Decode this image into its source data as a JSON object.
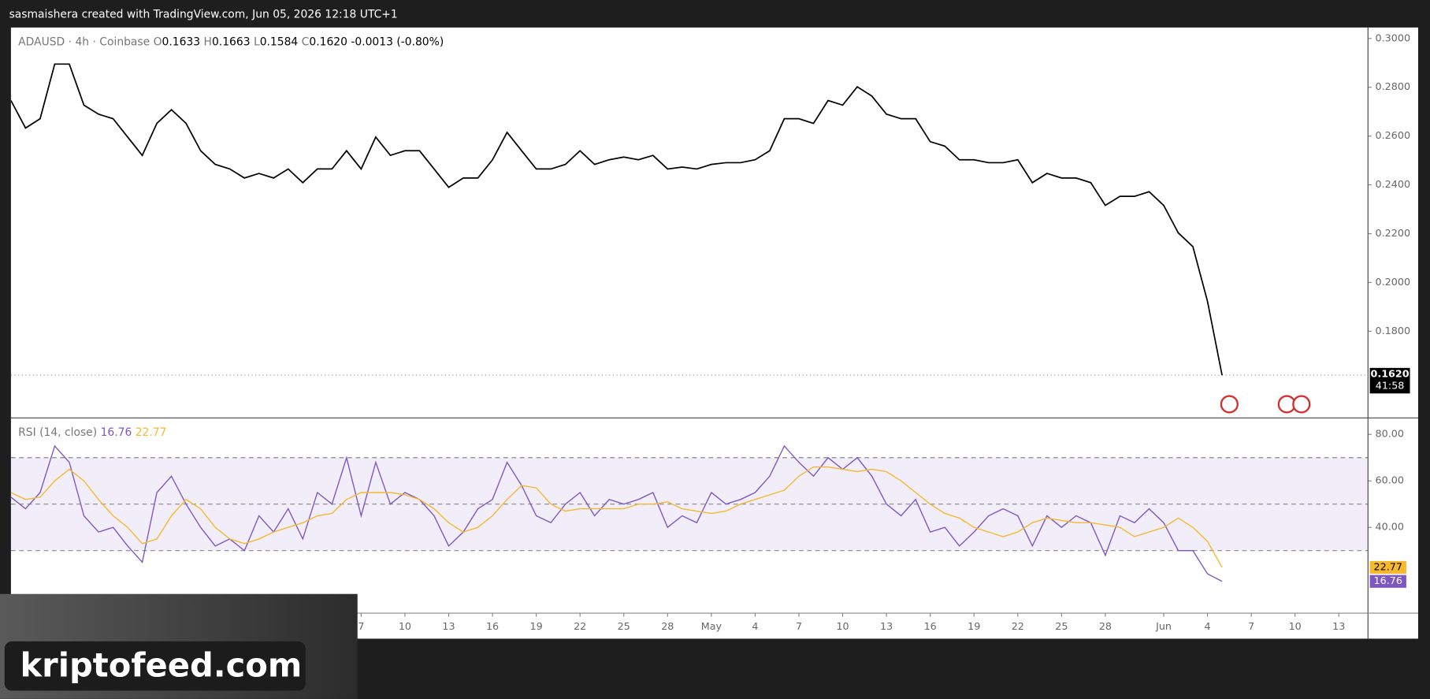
{
  "header": {
    "text": "sasmaishera created with TradingView.com, Jun 05, 2026 12:18 UTC+1"
  },
  "watermark": "kriptofeed.com",
  "chart_data": [
    {
      "type": "line",
      "title": "ADAUSD · 4h · Coinbase",
      "ohlc": [
        {
          "name": "O",
          "value": "0.1633"
        },
        {
          "name": "H",
          "value": "0.1663"
        },
        {
          "name": "L",
          "value": "0.1584"
        },
        {
          "name": "C",
          "value": "0.1620"
        }
      ],
      "change": "-0.0013 (-0.80%)",
      "last_price": {
        "value": 0.162,
        "label": "0.1620"
      },
      "countdown": "41:58",
      "x": [
        "2026-03-14",
        "2026-03-15",
        "2026-03-16",
        "2026-03-17",
        "2026-03-18",
        "2026-03-19",
        "2026-03-20",
        "2026-03-21",
        "2026-03-22",
        "2026-03-23",
        "2026-03-24",
        "2026-03-25",
        "2026-03-26",
        "2026-03-27",
        "2026-03-28",
        "2026-03-29",
        "2026-03-30",
        "2026-03-31",
        "2026-04-01",
        "2026-04-02",
        "2026-04-03",
        "2026-04-04",
        "2026-04-05",
        "2026-04-06",
        "2026-04-07",
        "2026-04-08",
        "2026-04-09",
        "2026-04-10",
        "2026-04-11",
        "2026-04-12",
        "2026-04-13",
        "2026-04-14",
        "2026-04-15",
        "2026-04-16",
        "2026-04-17",
        "2026-04-18",
        "2026-04-19",
        "2026-04-20",
        "2026-04-21",
        "2026-04-22",
        "2026-04-23",
        "2026-04-24",
        "2026-04-25",
        "2026-04-26",
        "2026-04-27",
        "2026-04-28",
        "2026-04-29",
        "2026-04-30",
        "2026-05-01",
        "2026-05-02",
        "2026-05-03",
        "2026-05-04",
        "2026-05-05",
        "2026-05-06",
        "2026-05-07",
        "2026-05-08",
        "2026-05-09",
        "2026-05-10",
        "2026-05-11",
        "2026-05-12",
        "2026-05-13",
        "2026-05-14",
        "2026-05-15",
        "2026-05-16",
        "2026-05-17",
        "2026-05-18",
        "2026-05-19",
        "2026-05-20",
        "2026-05-21",
        "2026-05-22",
        "2026-05-23",
        "2026-05-24",
        "2026-05-25",
        "2026-05-26",
        "2026-05-27",
        "2026-05-28",
        "2026-05-29",
        "2026-05-30",
        "2026-05-31",
        "2026-06-01",
        "2026-06-02",
        "2026-06-03",
        "2026-06-04",
        "2026-06-05"
      ],
      "color": "#000000",
      "values": [
        0.2746,
        0.2633,
        0.2671,
        0.2895,
        0.2895,
        0.2727,
        0.269,
        0.2671,
        0.2596,
        0.2521,
        0.2652,
        0.2708,
        0.2652,
        0.254,
        0.2484,
        0.2465,
        0.2428,
        0.2447,
        0.2428,
        0.2465,
        0.2409,
        0.2465,
        0.2465,
        0.254,
        0.2465,
        0.2596,
        0.2521,
        0.254,
        0.254,
        0.2465,
        0.239,
        0.2428,
        0.2428,
        0.2503,
        0.2615,
        0.254,
        0.2465,
        0.2465,
        0.2484,
        0.254,
        0.2484,
        0.2503,
        0.2514,
        0.2503,
        0.2521,
        0.2465,
        0.2473,
        0.2465,
        0.2484,
        0.2491,
        0.2491,
        0.2503,
        0.254,
        0.2671,
        0.2671,
        0.2652,
        0.2746,
        0.2727,
        0.2802,
        0.2764,
        0.269,
        0.2671,
        0.2671,
        0.2577,
        0.2559,
        0.2503,
        0.2503,
        0.2491,
        0.2491,
        0.2503,
        0.2409,
        0.2447,
        0.2428,
        0.2428,
        0.2409,
        0.2316,
        0.2353,
        0.2353,
        0.2372,
        0.2316,
        0.2203,
        0.2147,
        0.1923,
        0.162
      ],
      "xlim": [
        "2026-03-14",
        "2026-06-15"
      ],
      "ylim": [
        0.1445,
        0.3045
      ],
      "yticks": [
        {
          "value": 0.3,
          "label": "0.3000"
        },
        {
          "value": 0.28,
          "label": "0.2800"
        },
        {
          "value": 0.26,
          "label": "0.2600"
        },
        {
          "value": 0.24,
          "label": "0.2400"
        },
        {
          "value": 0.22,
          "label": "0.2200"
        },
        {
          "value": 0.2,
          "label": "0.2000"
        },
        {
          "value": 0.18,
          "label": "0.1800"
        }
      ]
    },
    {
      "type": "line",
      "title": "RSI (14, close)",
      "x": [
        "2026-03-14",
        "2026-03-15",
        "2026-03-16",
        "2026-03-17",
        "2026-03-18",
        "2026-03-19",
        "2026-03-20",
        "2026-03-21",
        "2026-03-22",
        "2026-03-23",
        "2026-03-24",
        "2026-03-25",
        "2026-03-26",
        "2026-03-27",
        "2026-03-28",
        "2026-03-29",
        "2026-03-30",
        "2026-03-31",
        "2026-04-01",
        "2026-04-02",
        "2026-04-03",
        "2026-04-04",
        "2026-04-05",
        "2026-04-06",
        "2026-04-07",
        "2026-04-08",
        "2026-04-09",
        "2026-04-10",
        "2026-04-11",
        "2026-04-12",
        "2026-04-13",
        "2026-04-14",
        "2026-04-15",
        "2026-04-16",
        "2026-04-17",
        "2026-04-18",
        "2026-04-19",
        "2026-04-20",
        "2026-04-21",
        "2026-04-22",
        "2026-04-23",
        "2026-04-24",
        "2026-04-25",
        "2026-04-26",
        "2026-04-27",
        "2026-04-28",
        "2026-04-29",
        "2026-04-30",
        "2026-05-01",
        "2026-05-02",
        "2026-05-03",
        "2026-05-04",
        "2026-05-05",
        "2026-05-06",
        "2026-05-07",
        "2026-05-08",
        "2026-05-09",
        "2026-05-10",
        "2026-05-11",
        "2026-05-12",
        "2026-05-13",
        "2026-05-14",
        "2026-05-15",
        "2026-05-16",
        "2026-05-17",
        "2026-05-18",
        "2026-05-19",
        "2026-05-20",
        "2026-05-21",
        "2026-05-22",
        "2026-05-23",
        "2026-05-24",
        "2026-05-25",
        "2026-05-26",
        "2026-05-27",
        "2026-05-28",
        "2026-05-29",
        "2026-05-30",
        "2026-05-31",
        "2026-06-01",
        "2026-06-02",
        "2026-06-03",
        "2026-06-04",
        "2026-06-05"
      ],
      "series": [
        {
          "color": "#7e57c2",
          "values": [
            53,
            48,
            55,
            75,
            68,
            45,
            38,
            40,
            32,
            25,
            55,
            62,
            50,
            40,
            32,
            35,
            30,
            45,
            38,
            48,
            35,
            55,
            50,
            70,
            45,
            68,
            50,
            55,
            52,
            45,
            32,
            38,
            48,
            52,
            68,
            58,
            45,
            42,
            50,
            55,
            45,
            52,
            50,
            52,
            55,
            40,
            45,
            42,
            55,
            50,
            52,
            55,
            62,
            75,
            68,
            62,
            70,
            65,
            70,
            62,
            50,
            45,
            52,
            38,
            40,
            32,
            38,
            45,
            48,
            45,
            32,
            45,
            40,
            45,
            42,
            28,
            45,
            42,
            48,
            42,
            30,
            30,
            20,
            16.76
          ]
        },
        {
          "color": "#f5b82e",
          "values": [
            55,
            52,
            53,
            60,
            65,
            60,
            52,
            45,
            40,
            33,
            35,
            45,
            52,
            48,
            40,
            35,
            33,
            35,
            38,
            40,
            42,
            45,
            46,
            52,
            55,
            55,
            55,
            54,
            52,
            48,
            42,
            38,
            40,
            45,
            52,
            58,
            57,
            50,
            47,
            48,
            48,
            48,
            48,
            50,
            50,
            51,
            48,
            47,
            46,
            47,
            50,
            52,
            54,
            56,
            62,
            66,
            66,
            65,
            64,
            65,
            64,
            60,
            55,
            50,
            46,
            44,
            40,
            38,
            36,
            38,
            42,
            44,
            43,
            42,
            42,
            41,
            40,
            36,
            38,
            40,
            44,
            40,
            34,
            22.77
          ]
        }
      ],
      "band": [
        30,
        70
      ],
      "hlines": [
        70,
        50,
        30
      ],
      "xlim": [
        "2026-03-14",
        "2026-06-15"
      ],
      "ylim": [
        3.1,
        87.1
      ],
      "yticks": [
        {
          "value": 80,
          "label": "80.00"
        },
        {
          "value": 60,
          "label": "60.00"
        },
        {
          "value": 40,
          "label": "40.00"
        }
      ],
      "xticks": [
        {
          "value": "2026-04-07",
          "label": "7"
        },
        {
          "value": "2026-04-10",
          "label": "10"
        },
        {
          "value": "2026-04-13",
          "label": "13"
        },
        {
          "value": "2026-04-16",
          "label": "16"
        },
        {
          "value": "2026-04-19",
          "label": "19"
        },
        {
          "value": "2026-04-22",
          "label": "22"
        },
        {
          "value": "2026-04-25",
          "label": "25"
        },
        {
          "value": "2026-04-28",
          "label": "28"
        },
        {
          "value": "2026-05-01",
          "label": "May"
        },
        {
          "value": "2026-05-04",
          "label": "4"
        },
        {
          "value": "2026-05-07",
          "label": "7"
        },
        {
          "value": "2026-05-10",
          "label": "10"
        },
        {
          "value": "2026-05-13",
          "label": "13"
        },
        {
          "value": "2026-05-16",
          "label": "16"
        },
        {
          "value": "2026-05-19",
          "label": "19"
        },
        {
          "value": "2026-05-22",
          "label": "22"
        },
        {
          "value": "2026-05-25",
          "label": "25"
        },
        {
          "value": "2026-05-28",
          "label": "28"
        },
        {
          "value": "2026-06-01",
          "label": "Jun"
        },
        {
          "value": "2026-06-04",
          "label": "4"
        },
        {
          "value": "2026-06-07",
          "label": "7"
        },
        {
          "value": "2026-06-10",
          "label": "10"
        },
        {
          "value": "2026-06-13",
          "label": "13"
        }
      ]
    }
  ]
}
